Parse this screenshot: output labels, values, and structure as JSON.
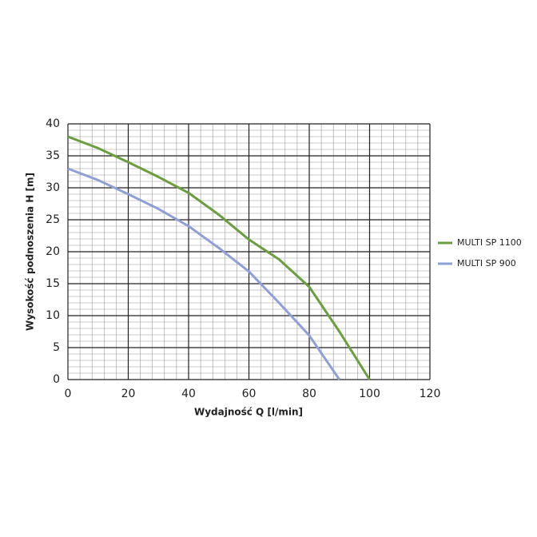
{
  "chart_data": {
    "type": "line",
    "xlabel": "Wydajność Q [l/min]",
    "ylabel": "Wysokość podnoszenia H [m]",
    "x": [
      0,
      10,
      20,
      30,
      40,
      50,
      60,
      70,
      80,
      90,
      100
    ],
    "series": [
      {
        "name": "MULTI SP 1100",
        "color": "#6a9e3f",
        "values": [
          38,
          36.2,
          34,
          31.7,
          29.2,
          25.8,
          21.9,
          18.8,
          14.5,
          7.5,
          0
        ]
      },
      {
        "name": "MULTI SP 900",
        "color": "#8fa0d8",
        "values": [
          33,
          31.2,
          29,
          26.7,
          24,
          20.6,
          16.9,
          12,
          6.9,
          0,
          null
        ]
      }
    ],
    "xlim": [
      0,
      120
    ],
    "xticks": [
      0,
      20,
      40,
      60,
      80,
      100,
      120
    ],
    "ylim": [
      0,
      40
    ],
    "yticks": [
      0,
      5,
      10,
      15,
      20,
      25,
      30,
      35,
      40
    ],
    "grid": true,
    "legend": "right"
  }
}
